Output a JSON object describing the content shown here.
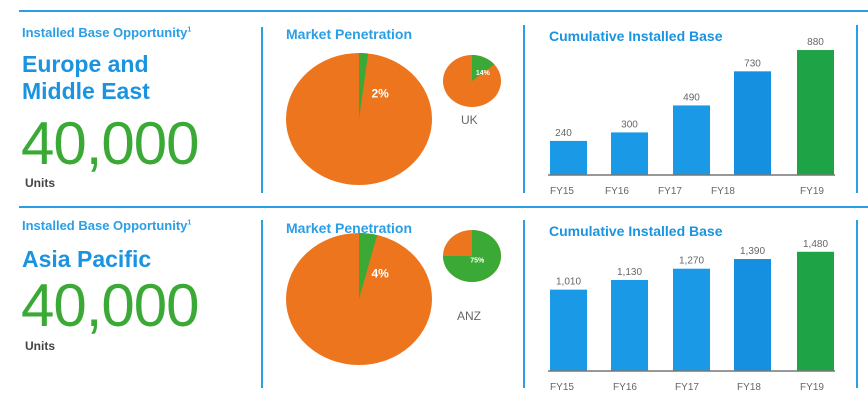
{
  "colors": {
    "blue": "#1a9ae6",
    "green": "#1ea347",
    "orange": "#ec751e",
    "pie_green": "#3aa935"
  },
  "sections": [
    {
      "opportunity_label": "Installed Base Opportunity",
      "footnote": "1",
      "region_lines": [
        "Europe and",
        "Middle East"
      ],
      "units_value": "40,000",
      "units_label": "Units",
      "penetration_title": "Market Penetration",
      "main_pie": {
        "percent": 2,
        "label": "2%"
      },
      "sub_pie": {
        "percent": 14,
        "label": "14%",
        "name": "UK"
      }
    },
    {
      "opportunity_label": "Installed Base Opportunity",
      "footnote": "1",
      "region_lines": [
        "Asia Pacific"
      ],
      "units_value": "40,000",
      "units_label": "Units",
      "penetration_title": "Market Penetration",
      "main_pie": {
        "percent": 4,
        "label": "4%"
      },
      "sub_pie": {
        "percent": 75,
        "label": "75%",
        "name": "ANZ"
      }
    }
  ],
  "chart_data": [
    {
      "type": "bar",
      "title": "Cumulative Installed Base",
      "categories": [
        "FY15",
        "FY16",
        "FY17",
        "FY18",
        "FY19"
      ],
      "values": [
        240,
        300,
        490,
        730,
        880
      ],
      "value_labels": [
        "240",
        "300",
        "490",
        "730",
        "880"
      ],
      "ylim": [
        0,
        1000
      ],
      "highlight": "FY19",
      "grid": false
    },
    {
      "type": "bar",
      "title": "Cumulative Installed Base",
      "categories": [
        "FY15",
        "FY16",
        "FY17",
        "FY18",
        "FY19"
      ],
      "values": [
        1010,
        1130,
        1270,
        1390,
        1480
      ],
      "value_labels": [
        "1,010",
        "1,130",
        "1,270",
        "1,390",
        "1,480"
      ],
      "ylim": [
        0,
        1800
      ],
      "highlight": "FY19",
      "grid": false
    }
  ]
}
